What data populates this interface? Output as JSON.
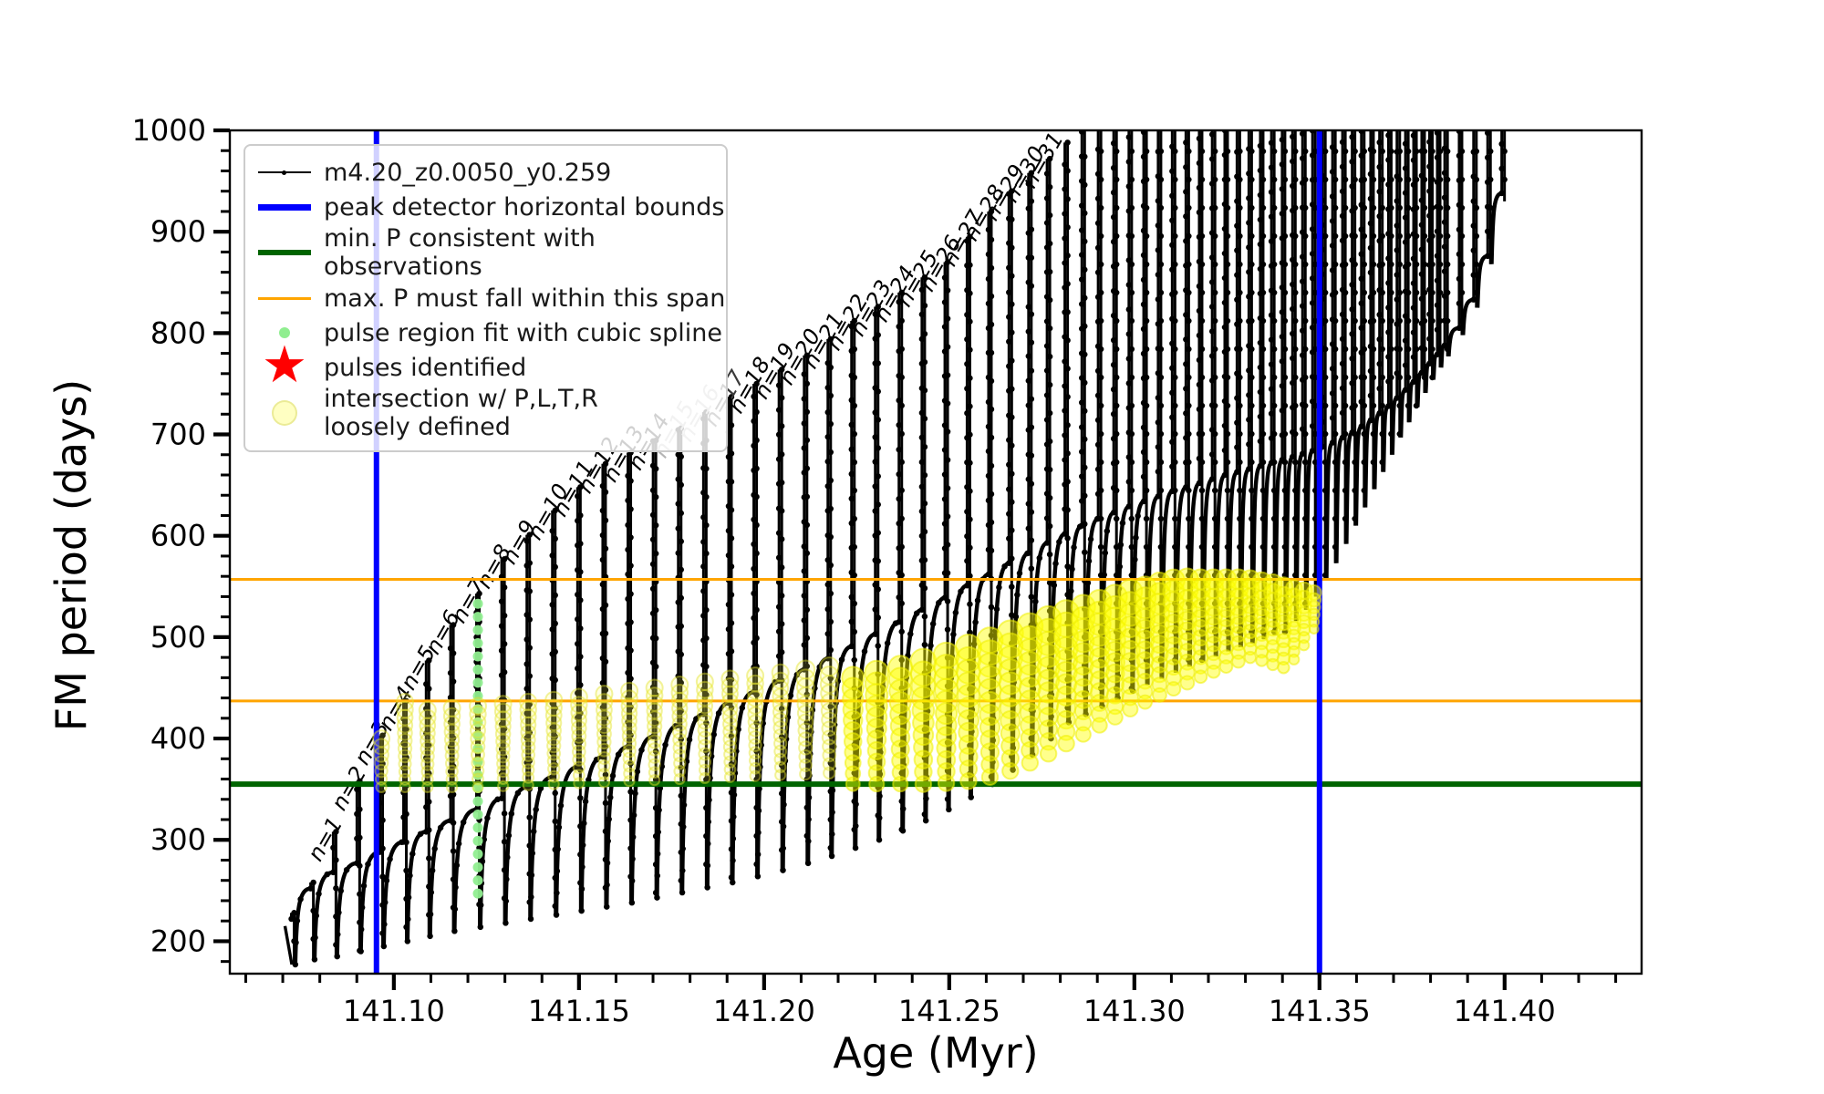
{
  "ui": {
    "legend": {
      "entries": [
        {
          "marker": "line-dot-black",
          "label": "m4.20_z0.0050_y0.259"
        },
        {
          "marker": "line-blue",
          "label": "peak detector horizontal bounds"
        },
        {
          "marker": "line-green",
          "label": "min. P consistent with observations"
        },
        {
          "marker": "line-orange",
          "label": "max. P must fall within this span"
        },
        {
          "marker": "dot-lightgreen",
          "label": "pulse region fit with cubic spline"
        },
        {
          "marker": "star-red",
          "label": "pulses identified"
        },
        {
          "marker": "dot-yellow",
          "label": "intersection w/ P,L,T,R",
          "label2": "loosely defined"
        }
      ]
    }
  },
  "chart_data": {
    "type": "line",
    "title": "",
    "xlabel": "Age (Myr)",
    "ylabel": "FM period (days)",
    "xlim": [
      141.0557,
      141.437
    ],
    "ylim": [
      168,
      1000
    ],
    "grid": false,
    "legend_position": "upper left",
    "series_name": "m4.20_z0.0050_y0.259",
    "xticks": {
      "major": [
        141.1,
        141.15,
        141.2,
        141.25,
        141.3,
        141.35,
        141.4
      ],
      "labels": [
        "141.10",
        "141.15",
        "141.20",
        "141.25",
        "141.30",
        "141.35",
        "141.40"
      ],
      "minor_step": 0.01,
      "minor_start": 141.06,
      "minor_end": 141.43
    },
    "yticks": {
      "major": [
        200,
        300,
        400,
        500,
        600,
        700,
        800,
        900,
        1000
      ],
      "labels": [
        "200",
        "300",
        "400",
        "500",
        "600",
        "700",
        "800",
        "900",
        "1000"
      ],
      "minor_step": 20,
      "minor_start": 180,
      "minor_end": 980
    },
    "hlines": [
      {
        "y": 557,
        "color": "#FFA500",
        "lw": 3,
        "role": "max-P-upper-bound"
      },
      {
        "y": 437,
        "color": "#FFA500",
        "lw": 3,
        "role": "max-P-lower-bound"
      },
      {
        "y": 355,
        "color": "#006400",
        "lw": 6,
        "role": "min-P-consistent"
      }
    ],
    "vlines": [
      {
        "x": 141.0953,
        "color": "#0000FF",
        "lw": 6,
        "role": "peak-detector-left-bound"
      },
      {
        "x": 141.35,
        "color": "#0000FF",
        "lw": 6,
        "role": "peak-detector-right-bound"
      }
    ],
    "intro_point": {
      "t": 141.0706,
      "p": 215
    },
    "pulses": [
      [
        141.0727,
        228,
        177,
        222
      ],
      [
        141.0779,
        258,
        182,
        252
      ],
      [
        141.084,
        308,
        185,
        268,
        "n=1"
      ],
      [
        141.0904,
        358,
        190,
        277,
        "n=2"
      ],
      [
        141.0966,
        403,
        195,
        288,
        "n=3"
      ],
      [
        141.103,
        437,
        200,
        298,
        "n=4"
      ],
      [
        141.1091,
        477,
        205,
        308,
        "n=5"
      ],
      [
        141.1157,
        512,
        210,
        319,
        "n=6"
      ],
      [
        141.1227,
        543,
        214,
        330,
        "n=7"
      ],
      [
        141.1295,
        577,
        218,
        341,
        "n=8"
      ],
      [
        141.1363,
        601,
        222,
        352,
        "n=9"
      ],
      [
        141.1432,
        625,
        226,
        362,
        "n=10"
      ],
      [
        141.15,
        648,
        230,
        372,
        "n=11"
      ],
      [
        141.1568,
        671,
        234,
        382,
        "n=12"
      ],
      [
        141.1636,
        682,
        238,
        392,
        "n=13"
      ],
      [
        141.1704,
        694,
        243,
        402,
        "n=14"
      ],
      [
        141.1772,
        706,
        248,
        413,
        "n=15",
        "gray"
      ],
      [
        141.184,
        722,
        253,
        424,
        "n=16",
        "gray"
      ],
      [
        141.1908,
        737,
        258,
        435,
        "n=17",
        "dark"
      ],
      [
        141.1976,
        750,
        264,
        446,
        "n=18"
      ],
      [
        141.2044,
        764,
        270,
        457,
        "n=19"
      ],
      [
        141.2112,
        778,
        277,
        468,
        "n=20"
      ],
      [
        141.2176,
        794,
        284,
        479,
        "n=21"
      ],
      [
        141.224,
        812,
        292,
        491,
        "n=22"
      ],
      [
        141.2304,
        826,
        300,
        503,
        "n=23"
      ],
      [
        141.2368,
        840,
        309,
        515,
        "n=24"
      ],
      [
        141.243,
        855,
        319,
        527,
        "n=25"
      ],
      [
        141.2492,
        870,
        330,
        539,
        "n=26"
      ],
      [
        141.2552,
        895,
        342,
        551,
        "n=27"
      ],
      [
        141.261,
        920,
        355,
        562,
        "n=28"
      ],
      [
        141.2665,
        940,
        369,
        573,
        "n=29"
      ],
      [
        141.2718,
        958,
        384,
        583,
        "n=30"
      ],
      [
        141.2768,
        972,
        400,
        593,
        "n=31"
      ],
      [
        141.2816,
        988,
        416,
        602
      ],
      [
        141.2862,
        1002,
        424,
        610
      ],
      [
        141.2906,
        1012,
        432,
        617
      ],
      [
        141.2948,
        1012,
        440,
        623
      ],
      [
        141.2989,
        1012,
        447,
        629
      ],
      [
        141.3029,
        1012,
        453,
        634
      ],
      [
        141.3068,
        1012,
        459,
        639
      ],
      [
        141.3106,
        1012,
        465,
        644
      ],
      [
        141.3143,
        1012,
        471,
        648
      ],
      [
        141.3179,
        1012,
        476,
        652
      ],
      [
        141.3214,
        1012,
        481,
        656
      ],
      [
        141.3248,
        1012,
        486,
        660
      ],
      [
        141.3281,
        1012,
        490,
        663
      ],
      [
        141.3313,
        1012,
        494,
        666
      ],
      [
        141.3344,
        1012,
        498,
        669
      ],
      [
        141.3374,
        1012,
        502,
        672
      ],
      [
        141.3403,
        1012,
        505,
        675
      ],
      [
        141.3431,
        1012,
        516,
        678
      ],
      [
        141.3458,
        1012,
        527,
        681
      ],
      [
        141.3485,
        1012,
        540,
        684
      ],
      [
        141.3512,
        1012,
        556,
        688
      ],
      [
        141.3539,
        1012,
        573,
        692
      ],
      [
        141.3566,
        1012,
        592,
        697
      ],
      [
        141.3592,
        1012,
        610,
        702
      ],
      [
        141.3617,
        1012,
        628,
        708
      ],
      [
        141.3642,
        1012,
        646,
        714
      ],
      [
        141.3666,
        1012,
        663,
        721
      ],
      [
        141.369,
        1012,
        680,
        728
      ],
      [
        141.3713,
        1012,
        697,
        736
      ],
      [
        141.3736,
        1012,
        712,
        744
      ],
      [
        141.3758,
        1012,
        727,
        752
      ],
      [
        141.378,
        1012,
        741,
        761
      ],
      [
        141.3801,
        1012,
        754,
        770
      ],
      [
        141.3822,
        1012,
        766,
        779
      ],
      [
        141.3842,
        1012,
        777,
        788
      ],
      [
        141.3881,
        1012,
        798,
        805
      ],
      [
        141.392,
        1012,
        825,
        833
      ],
      [
        141.3958,
        1012,
        868,
        876
      ],
      [
        141.3996,
        1012,
        930,
        938
      ]
    ],
    "label_colors": {
      "default": "#000000",
      "gray": "#b5b5b5",
      "dark": "#3a3a3a"
    },
    "spline_fit": {
      "x": 141.1227,
      "y_min": 247,
      "y_max": 544,
      "color": "#90ee90"
    },
    "yellow_columns": [
      [
        141.0966,
        352,
        400,
        9,
        0
      ],
      [
        141.103,
        352,
        436,
        9,
        0
      ],
      [
        141.1091,
        352,
        428,
        9,
        0
      ],
      [
        141.1157,
        352,
        430,
        9,
        0
      ],
      [
        141.1227,
        352,
        432,
        9,
        0
      ],
      [
        141.1295,
        353,
        434,
        9,
        0
      ],
      [
        141.1363,
        354,
        436,
        9,
        0
      ],
      [
        141.1432,
        355,
        438,
        9,
        0
      ],
      [
        141.15,
        356,
        441,
        9,
        0
      ],
      [
        141.1568,
        357,
        444,
        9,
        0
      ],
      [
        141.1636,
        358,
        447,
        9,
        0
      ],
      [
        141.1704,
        359,
        450,
        9,
        0
      ],
      [
        141.1772,
        360,
        453,
        9,
        0
      ],
      [
        141.184,
        361,
        456,
        9,
        0
      ],
      [
        141.1908,
        362,
        459,
        9,
        0
      ],
      [
        141.1976,
        363,
        462,
        9,
        0
      ],
      [
        141.2044,
        364,
        465,
        9,
        0
      ],
      [
        141.2112,
        365,
        468,
        10,
        0
      ],
      [
        141.2176,
        366,
        471,
        10,
        0
      ],
      [
        141.224,
        355,
        460,
        12,
        1
      ],
      [
        141.2304,
        355,
        465,
        13,
        1
      ],
      [
        141.2368,
        355,
        470,
        13,
        1
      ],
      [
        141.243,
        355,
        476,
        14,
        1
      ],
      [
        141.2492,
        356,
        482,
        14,
        1
      ],
      [
        141.2552,
        358,
        490,
        14,
        1
      ],
      [
        141.261,
        362,
        497,
        14,
        1
      ],
      [
        141.2665,
        368,
        504,
        14,
        1
      ],
      [
        141.2718,
        376,
        511,
        14,
        1
      ],
      [
        141.2768,
        385,
        518,
        14,
        1
      ],
      [
        141.2816,
        395,
        524,
        14,
        1
      ],
      [
        141.2862,
        404,
        530,
        13,
        1
      ],
      [
        141.2906,
        413,
        535,
        13,
        1
      ],
      [
        141.2948,
        421,
        540,
        13,
        1
      ],
      [
        141.2989,
        429,
        545,
        13,
        1
      ],
      [
        141.3029,
        436,
        549,
        12,
        1
      ],
      [
        141.3068,
        443,
        553,
        12,
        1
      ],
      [
        141.3106,
        449,
        556,
        12,
        1
      ],
      [
        141.3143,
        455,
        557,
        12,
        1
      ],
      [
        141.3179,
        461,
        557,
        11,
        1
      ],
      [
        141.3214,
        466,
        557,
        11,
        1
      ],
      [
        141.3248,
        471,
        557,
        11,
        1
      ],
      [
        141.3281,
        476,
        557,
        11,
        1
      ],
      [
        141.3313,
        480,
        557,
        10,
        1
      ],
      [
        141.3344,
        477,
        555,
        10,
        1
      ],
      [
        141.3374,
        473,
        553,
        10,
        1
      ],
      [
        141.3403,
        470,
        550,
        10,
        1
      ],
      [
        141.3431,
        478,
        548,
        9,
        1
      ],
      [
        141.3458,
        492,
        546,
        9,
        1
      ],
      [
        141.3485,
        508,
        544,
        8,
        1
      ]
    ]
  }
}
